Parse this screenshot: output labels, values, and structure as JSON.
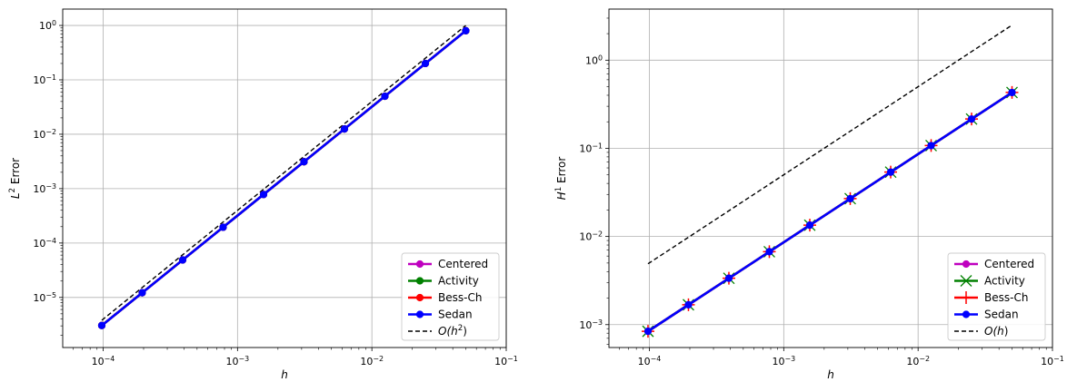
{
  "colors": {
    "Centered": "#bf00bf",
    "Activity": "#008000",
    "Bess-Ch": "#ff0000",
    "Sedan": "#0000ff",
    "reference": "#000000",
    "grid": "#b0b0b0"
  },
  "chart_data": [
    {
      "type": "line",
      "xscale": "log",
      "yscale": "log",
      "xlabel": "h",
      "ylabel": "L² Error",
      "ylabel_base": "L",
      "ylabel_sup": "2",
      "ylabel_rest": " Error",
      "xlim": [
        5e-05,
        0.1
      ],
      "ylim": [
        1.2e-06,
        2.0
      ],
      "grid": true,
      "legend_position": "lower right",
      "x_ticks": [
        {
          "value": 0.0001,
          "base": "10",
          "exp": "−4"
        },
        {
          "value": 0.001,
          "base": "10",
          "exp": "−3"
        },
        {
          "value": 0.01,
          "base": "10",
          "exp": "−2"
        },
        {
          "value": 0.1,
          "base": "10",
          "exp": "−1"
        }
      ],
      "y_ticks": [
        {
          "value": 1e-05,
          "base": "10",
          "exp": "−5"
        },
        {
          "value": 0.0001,
          "base": "10",
          "exp": "−4"
        },
        {
          "value": 0.001,
          "base": "10",
          "exp": "−3"
        },
        {
          "value": 0.01,
          "base": "10",
          "exp": "−2"
        },
        {
          "value": 0.1,
          "base": "10",
          "exp": "−1"
        },
        {
          "value": 1,
          "base": "10",
          "exp": "0"
        }
      ],
      "x": [
        0.05,
        0.025,
        0.0125,
        0.00625,
        0.003125,
        0.0015625,
        0.00078125,
        0.000390625,
        0.0001953125,
        9.765625e-05
      ],
      "series": [
        {
          "name": "Centered",
          "marker": "dot",
          "values": [
            0.8,
            0.2,
            0.05,
            0.0125,
            0.003125,
            0.00078125,
            0.0001953125,
            4.8828e-05,
            1.2207e-05,
            3.0518e-06
          ]
        },
        {
          "name": "Activity",
          "marker": "dot",
          "values": [
            0.8,
            0.2,
            0.05,
            0.0125,
            0.003125,
            0.00078125,
            0.0001953125,
            4.8828e-05,
            1.2207e-05,
            3.0518e-06
          ]
        },
        {
          "name": "Bess-Ch",
          "marker": "dot",
          "values": [
            0.8,
            0.2,
            0.05,
            0.0125,
            0.003125,
            0.00078125,
            0.0001953125,
            4.8828e-05,
            1.2207e-05,
            3.0518e-06
          ]
        },
        {
          "name": "Sedan",
          "marker": "dot",
          "values": [
            0.8,
            0.2,
            0.05,
            0.0125,
            0.003125,
            0.00078125,
            0.0001953125,
            4.8828e-05,
            1.2207e-05,
            3.0518e-06
          ]
        }
      ],
      "reference": {
        "name": "O(h²)",
        "name_pre": "O(h",
        "name_sup": "2",
        "name_post": ")",
        "x": [
          9.765625e-05,
          0.05
        ],
        "values": [
          3.8e-06,
          1.0
        ]
      }
    },
    {
      "type": "line",
      "xscale": "log",
      "yscale": "log",
      "xlabel": "h",
      "ylabel": "H¹ Error",
      "ylabel_base": "H",
      "ylabel_sup": "1",
      "ylabel_rest": " Error",
      "xlim": [
        5e-05,
        0.1
      ],
      "ylim": [
        0.00055,
        3.8
      ],
      "grid": true,
      "legend_position": "lower right",
      "x_ticks": [
        {
          "value": 0.0001,
          "base": "10",
          "exp": "−4"
        },
        {
          "value": 0.001,
          "base": "10",
          "exp": "−3"
        },
        {
          "value": 0.01,
          "base": "10",
          "exp": "−2"
        },
        {
          "value": 0.1,
          "base": "10",
          "exp": "−1"
        }
      ],
      "y_ticks": [
        {
          "value": 0.001,
          "base": "10",
          "exp": "−3"
        },
        {
          "value": 0.01,
          "base": "10",
          "exp": "−2"
        },
        {
          "value": 0.1,
          "base": "10",
          "exp": "−1"
        },
        {
          "value": 1,
          "base": "10",
          "exp": "0"
        }
      ],
      "x": [
        0.05,
        0.025,
        0.0125,
        0.00625,
        0.003125,
        0.0015625,
        0.00078125,
        0.000390625,
        0.0001953125,
        9.765625e-05
      ],
      "series": [
        {
          "name": "Centered",
          "marker": "dot",
          "values": [
            0.43,
            0.215,
            0.1075,
            0.05375,
            0.026875,
            0.0134375,
            0.00671875,
            0.003359,
            0.0016797,
            0.00083984
          ]
        },
        {
          "name": "Activity",
          "marker": "x",
          "values": [
            0.43,
            0.215,
            0.1075,
            0.05375,
            0.026875,
            0.0134375,
            0.00671875,
            0.003359,
            0.0016797,
            0.00083984
          ]
        },
        {
          "name": "Bess-Ch",
          "marker": "plus",
          "values": [
            0.43,
            0.215,
            0.1075,
            0.05375,
            0.026875,
            0.0134375,
            0.00671875,
            0.003359,
            0.0016797,
            0.00083984
          ]
        },
        {
          "name": "Sedan",
          "marker": "dot",
          "values": [
            0.43,
            0.215,
            0.1075,
            0.05375,
            0.026875,
            0.0134375,
            0.00671875,
            0.003359,
            0.0016797,
            0.00083984
          ]
        }
      ],
      "reference": {
        "name": "O(h)",
        "name_pre": "O(h",
        "name_sup": "",
        "name_post": ")",
        "x": [
          9.765625e-05,
          0.05
        ],
        "values": [
          0.0049,
          2.5
        ]
      }
    }
  ]
}
